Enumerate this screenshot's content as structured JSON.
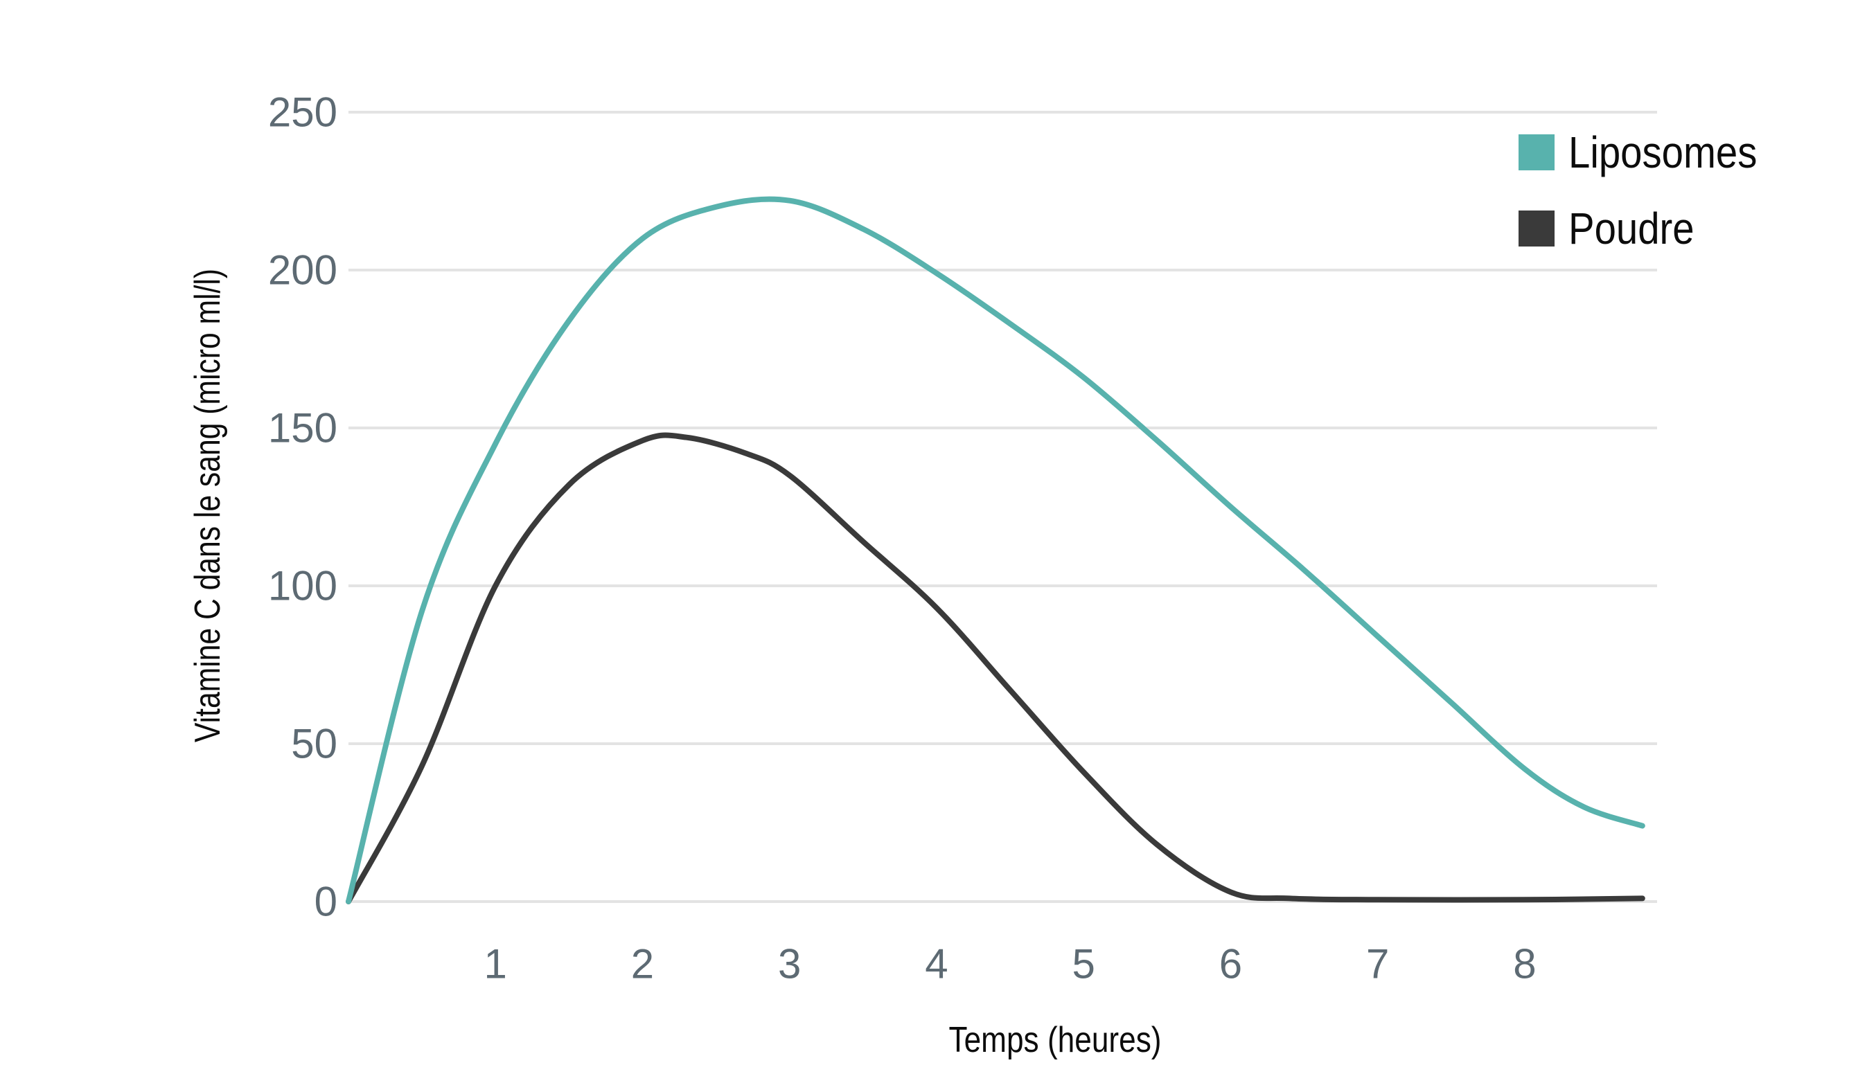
{
  "chart_data": {
    "type": "line",
    "title": "",
    "xlabel": "Temps (heures)",
    "ylabel": "Vitamine C dans le sang (micro ml/l)",
    "x_ticks": [
      1,
      2,
      3,
      4,
      5,
      6,
      7,
      8
    ],
    "y_ticks": [
      0,
      50,
      100,
      150,
      200,
      250
    ],
    "xlim": [
      0,
      8.9
    ],
    "ylim": [
      0,
      250
    ],
    "grid": "horizontal-only",
    "legend_position": "top-right",
    "series": [
      {
        "name": "Liposomes",
        "color": "#58b2ad",
        "points": [
          [
            0,
            0
          ],
          [
            0.5,
            92
          ],
          [
            1,
            145
          ],
          [
            1.5,
            184
          ],
          [
            2,
            210
          ],
          [
            2.5,
            220
          ],
          [
            3,
            222
          ],
          [
            3.5,
            213
          ],
          [
            4,
            199
          ],
          [
            4.5,
            183
          ],
          [
            5,
            166
          ],
          [
            5.5,
            146
          ],
          [
            6,
            125
          ],
          [
            6.5,
            105
          ],
          [
            7,
            84
          ],
          [
            7.5,
            63
          ],
          [
            8,
            42
          ],
          [
            8.4,
            30
          ],
          [
            8.8,
            24
          ]
        ]
      },
      {
        "name": "Poudre",
        "color": "#3a3a3a",
        "points": [
          [
            0,
            0
          ],
          [
            0.5,
            43
          ],
          [
            1,
            100
          ],
          [
            1.5,
            132
          ],
          [
            2,
            146
          ],
          [
            2.3,
            147
          ],
          [
            2.7,
            142
          ],
          [
            3,
            135
          ],
          [
            3.5,
            114
          ],
          [
            4,
            93
          ],
          [
            4.5,
            67
          ],
          [
            5,
            41
          ],
          [
            5.5,
            18
          ],
          [
            6,
            3
          ],
          [
            6.4,
            1
          ],
          [
            7,
            0.6
          ],
          [
            8,
            0.6
          ],
          [
            8.8,
            1
          ]
        ]
      }
    ],
    "colors": {
      "tick_label": "#5d6a73",
      "gridline": "#e3e3e3",
      "axis_title": "#0c0c0c"
    }
  },
  "legend": {
    "items": [
      {
        "label": "Liposomes",
        "color": "#58b2ad"
      },
      {
        "label": "Poudre",
        "color": "#3a3a3a"
      }
    ]
  }
}
